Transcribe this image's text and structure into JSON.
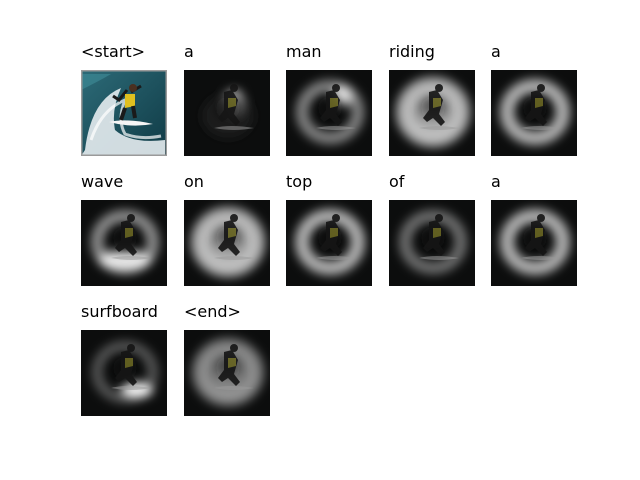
{
  "figure": {
    "tokens": [
      {
        "word": "<start>",
        "kind": "original"
      },
      {
        "word": "a",
        "kind": "attention",
        "focus": "surfer"
      },
      {
        "word": "man",
        "kind": "attention",
        "focus": "surfer-ring"
      },
      {
        "word": "riding",
        "kind": "attention",
        "focus": "broad"
      },
      {
        "word": "a",
        "kind": "attention",
        "focus": "ring"
      },
      {
        "word": "wave",
        "kind": "attention",
        "focus": "ring-low"
      },
      {
        "word": "on",
        "kind": "attention",
        "focus": "broad"
      },
      {
        "word": "top",
        "kind": "attention",
        "focus": "ring"
      },
      {
        "word": "of",
        "kind": "attention",
        "focus": "ring-faint"
      },
      {
        "word": "a",
        "kind": "attention",
        "focus": "ring"
      },
      {
        "word": "surfboard",
        "kind": "attention",
        "focus": "board"
      },
      {
        "word": "<end>",
        "kind": "attention",
        "focus": "broad-soft"
      }
    ]
  }
}
